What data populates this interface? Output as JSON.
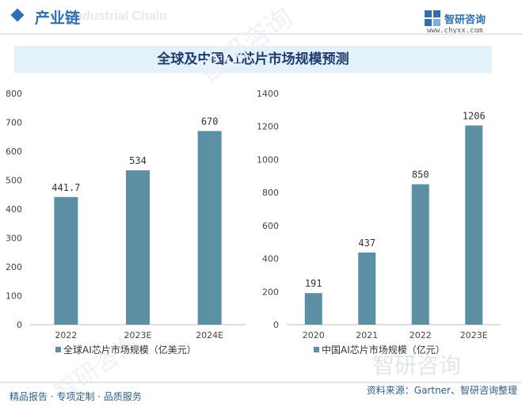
{
  "header": {
    "title": "产业链",
    "ghost_text": "Industrial Chain",
    "brand_name": "智研咨询",
    "brand_url": "www.chyxx.com",
    "accent_color": "#2f6fb0"
  },
  "main_title": "全球及中国AI芯片市场规模预测",
  "footer": {
    "left": "精品报告 · 专项定制 · 品质服务",
    "source": "资料来源：Gartner、智研咨询整理"
  },
  "watermark": "智研咨询",
  "chart_data": [
    {
      "type": "bar",
      "categories": [
        "2022",
        "2023E",
        "2024E"
      ],
      "series": [
        {
          "name": "全球AI芯片市场规模（亿美元）",
          "values": [
            441.7,
            534,
            670
          ]
        }
      ],
      "data_labels": [
        "441.7",
        "534",
        "670"
      ],
      "ylim": [
        0,
        800
      ],
      "yticks": [
        0,
        100,
        200,
        300,
        400,
        500,
        600,
        700,
        800
      ],
      "color": "#5b8fa3",
      "grid": false,
      "legend_position": "bottom-left"
    },
    {
      "type": "bar",
      "categories": [
        "2020",
        "2021",
        "2022",
        "2023E"
      ],
      "series": [
        {
          "name": "中国AI芯片市场规模（亿元）",
          "values": [
            191,
            437,
            850,
            1206
          ]
        }
      ],
      "data_labels": [
        "191",
        "437",
        "850",
        "1206"
      ],
      "ylim": [
        0,
        1400
      ],
      "yticks": [
        0,
        200,
        400,
        600,
        800,
        1000,
        1200,
        1400
      ],
      "color": "#5b8fa3",
      "grid": false,
      "legend_position": "bottom-left"
    }
  ]
}
